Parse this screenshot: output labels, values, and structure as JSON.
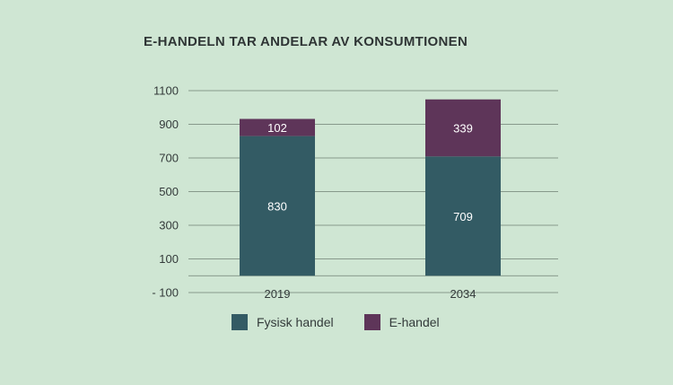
{
  "chart_data": {
    "type": "bar",
    "stacked": true,
    "title": "E-HANDELN TAR ANDELAR AV KONSUMTIONEN",
    "categories": [
      "2019",
      "2034"
    ],
    "series": [
      {
        "name": "Fysisk handel",
        "values": [
          830,
          709
        ],
        "color": "#335b64"
      },
      {
        "name": "E-handel",
        "values": [
          102,
          339
        ],
        "color": "#5e3559"
      }
    ],
    "y_ticks": [
      1100,
      900,
      700,
      500,
      300,
      100,
      -100
    ],
    "y_tick_labels": [
      "1100",
      "900",
      "700",
      "500",
      "300",
      "100",
      "- 100"
    ],
    "ylim": [
      -100,
      1100
    ],
    "grid": true,
    "legend_position": "bottom",
    "colors": {
      "background": "#cfe6d3",
      "gridline": "#6f7f73",
      "text": "#333a3a"
    }
  }
}
